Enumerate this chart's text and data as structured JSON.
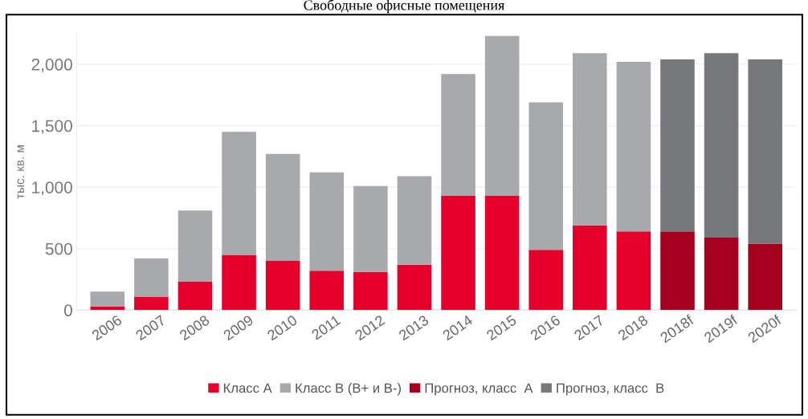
{
  "chart_data": {
    "type": "bar",
    "title": "Свободные офисные помещения",
    "ylabel": "тыс. кв. м",
    "categories": [
      "2006",
      "2007",
      "2008",
      "2009",
      "2010",
      "2011",
      "2012",
      "2013",
      "2014",
      "2015",
      "2016",
      "2017",
      "2018",
      "2018f",
      "2019f",
      "2020f"
    ],
    "stacked": true,
    "series": [
      {
        "name": "Класс А",
        "color": "#e4002b",
        "values": [
          30,
          110,
          230,
          450,
          400,
          320,
          310,
          370,
          930,
          930,
          490,
          690,
          640,
          null,
          null,
          null
        ]
      },
      {
        "name": "Класс В (В+ и В-)",
        "color": "#a7a9ac",
        "values": [
          120,
          310,
          580,
          1000,
          870,
          800,
          700,
          720,
          990,
          1300,
          1200,
          1400,
          1380,
          null,
          null,
          null
        ]
      },
      {
        "name": "Прогноз, класс  А",
        "color": "#a6001f",
        "values": [
          null,
          null,
          null,
          null,
          null,
          null,
          null,
          null,
          null,
          null,
          null,
          null,
          null,
          640,
          590,
          540
        ]
      },
      {
        "name": "Прогноз, класс  В",
        "color": "#77787b",
        "values": [
          null,
          null,
          null,
          null,
          null,
          null,
          null,
          null,
          null,
          null,
          null,
          null,
          null,
          1400,
          1500,
          1500
        ]
      }
    ],
    "ylim": [
      0,
      2250
    ],
    "yticks": [
      {
        "value": 0,
        "label": "0"
      },
      {
        "value": 500,
        "label": "500"
      },
      {
        "value": 1000,
        "label": "1,000"
      },
      {
        "value": 1500,
        "label": "1,500"
      },
      {
        "value": 2000,
        "label": "2,000"
      }
    ],
    "grid": "y",
    "legend": "bottom"
  }
}
